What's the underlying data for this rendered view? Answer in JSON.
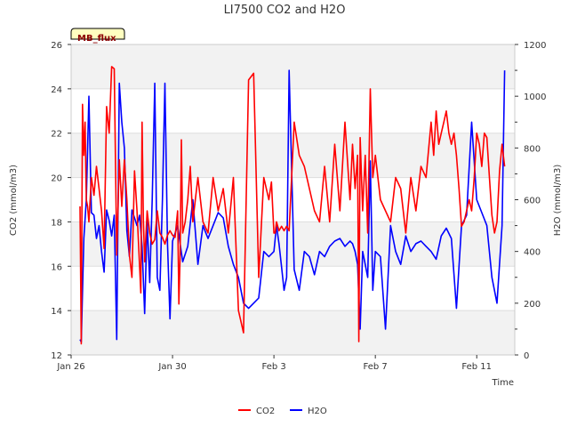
{
  "chart_data": {
    "type": "line",
    "title": "LI7500 CO2 and H2O",
    "badge": "MB_flux",
    "xlabel": "Time",
    "ylabel_left": "CO2 (mmol/m3)",
    "ylabel_right": "H2O (mmol/m3)",
    "x_ticks": [
      "Jan 26",
      "Jan 30",
      "Feb 3",
      "Feb 7",
      "Feb 11"
    ],
    "x_tick_days": [
      0,
      4,
      8,
      12,
      16
    ],
    "xlim_days": [
      0,
      17.5
    ],
    "ylim_left": [
      12,
      26
    ],
    "yticks_left": [
      12,
      14,
      16,
      18,
      20,
      22,
      24,
      26
    ],
    "ylim_right": [
      0,
      1200
    ],
    "yticks_right": [
      0,
      200,
      400,
      600,
      800,
      1000,
      1200
    ],
    "grid_bands": true,
    "legend_position": "bottom-center",
    "series": [
      {
        "name": "CO2",
        "axis": "left",
        "color": "#ff0000",
        "x": [
          0.35,
          0.4,
          0.45,
          0.5,
          0.55,
          0.6,
          0.65,
          0.7,
          0.8,
          0.9,
          1.0,
          1.1,
          1.2,
          1.3,
          1.4,
          1.5,
          1.6,
          1.7,
          1.8,
          1.9,
          2.0,
          2.1,
          2.2,
          2.3,
          2.4,
          2.5,
          2.6,
          2.7,
          2.75,
          2.8,
          2.85,
          2.9,
          3.0,
          3.1,
          3.2,
          3.3,
          3.4,
          3.5,
          3.6,
          3.7,
          3.8,
          3.9,
          4.0,
          4.1,
          4.2,
          4.25,
          4.3,
          4.35,
          4.4,
          4.5,
          4.6,
          4.7,
          4.8,
          4.9,
          5.0,
          5.2,
          5.4,
          5.6,
          5.8,
          6.0,
          6.2,
          6.4,
          6.6,
          6.8,
          7.0,
          7.2,
          7.4,
          7.6,
          7.8,
          7.9,
          8.0,
          8.05,
          8.1,
          8.2,
          8.3,
          8.4,
          8.5,
          8.6,
          8.8,
          9.0,
          9.2,
          9.4,
          9.6,
          9.8,
          10.0,
          10.2,
          10.4,
          10.6,
          10.8,
          11.0,
          11.1,
          11.2,
          11.3,
          11.35,
          11.4,
          11.5,
          11.6,
          11.7,
          11.8,
          11.9,
          12.0,
          12.2,
          12.4,
          12.6,
          12.8,
          13.0,
          13.2,
          13.4,
          13.6,
          13.8,
          14.0,
          14.2,
          14.3,
          14.4,
          14.5,
          14.6,
          14.7,
          14.8,
          14.9,
          15.0,
          15.1,
          15.2,
          15.3,
          15.4,
          15.5,
          15.6,
          15.7,
          15.8,
          15.9,
          16.0,
          16.1,
          16.2,
          16.3,
          16.4,
          16.5,
          16.6,
          16.7,
          16.8,
          16.9,
          17.0,
          17.1
        ],
        "values": [
          18.7,
          12.5,
          23.3,
          21.0,
          22.5,
          19.0,
          18.7,
          18.0,
          20.0,
          19.2,
          20.5,
          19.5,
          18.5,
          16.8,
          23.2,
          22.0,
          25.0,
          24.9,
          16.5,
          20.8,
          18.7,
          20.8,
          19.0,
          16.5,
          15.5,
          20.3,
          18.5,
          16.0,
          14.8,
          22.5,
          18.0,
          16.2,
          18.5,
          17.5,
          17.0,
          17.2,
          18.5,
          17.5,
          17.3,
          17.0,
          17.4,
          17.6,
          17.4,
          17.3,
          18.5,
          14.3,
          16.5,
          21.7,
          17.5,
          18.0,
          19.0,
          20.5,
          18.0,
          19.0,
          20.0,
          18.0,
          17.5,
          20.0,
          18.5,
          19.5,
          17.5,
          20.0,
          14.0,
          13.0,
          24.4,
          24.7,
          15.5,
          20.0,
          19.0,
          19.8,
          17.5,
          17.5,
          18.0,
          17.6,
          17.8,
          17.6,
          17.8,
          17.6,
          22.5,
          21.0,
          20.5,
          19.5,
          18.5,
          18.0,
          20.5,
          18.0,
          21.5,
          18.5,
          22.5,
          19.0,
          21.5,
          19.5,
          21.0,
          12.6,
          21.8,
          18.5,
          21.0,
          17.5,
          24.0,
          20.0,
          21.0,
          19.0,
          18.5,
          18.0,
          20.0,
          19.5,
          17.5,
          20.0,
          18.5,
          20.5,
          20.0,
          22.5,
          21.0,
          23.0,
          21.5,
          22.0,
          22.5,
          23.0,
          22.0,
          21.5,
          22.0,
          21.0,
          19.5,
          17.8,
          18.0,
          18.5,
          19.0,
          18.5,
          20.0,
          22.0,
          21.5,
          20.5,
          22.0,
          21.8,
          20.0,
          18.3,
          17.5,
          18.0,
          20.3,
          21.5,
          20.5
        ],
        "note": "approximate trace; sampled from dense high-frequency record"
      },
      {
        "name": "H2O",
        "axis": "right",
        "color": "#0000ff",
        "x": [
          0.35,
          0.4,
          0.5,
          0.6,
          0.7,
          0.8,
          0.9,
          1.0,
          1.1,
          1.2,
          1.3,
          1.4,
          1.5,
          1.6,
          1.7,
          1.8,
          1.9,
          2.0,
          2.1,
          2.2,
          2.3,
          2.4,
          2.5,
          2.6,
          2.7,
          2.8,
          2.9,
          3.0,
          3.1,
          3.2,
          3.3,
          3.4,
          3.5,
          3.6,
          3.7,
          3.8,
          3.9,
          4.0,
          4.2,
          4.4,
          4.6,
          4.8,
          5.0,
          5.2,
          5.4,
          5.6,
          5.8,
          6.0,
          6.2,
          6.4,
          6.6,
          6.8,
          7.0,
          7.2,
          7.4,
          7.6,
          7.8,
          8.0,
          8.1,
          8.2,
          8.3,
          8.4,
          8.5,
          8.6,
          8.8,
          9.0,
          9.2,
          9.4,
          9.6,
          9.8,
          10.0,
          10.2,
          10.4,
          10.6,
          10.8,
          11.0,
          11.1,
          11.2,
          11.3,
          11.4,
          11.5,
          11.6,
          11.7,
          11.8,
          11.9,
          12.0,
          12.2,
          12.4,
          12.6,
          12.8,
          13.0,
          13.2,
          13.4,
          13.6,
          13.8,
          14.0,
          14.2,
          14.4,
          14.6,
          14.8,
          15.0,
          15.2,
          15.4,
          15.5,
          15.6,
          15.8,
          16.0,
          16.2,
          16.4,
          16.6,
          16.8,
          17.0,
          17.1
        ],
        "values": [
          60,
          50,
          450,
          600,
          1000,
          550,
          540,
          450,
          500,
          400,
          320,
          560,
          520,
          460,
          540,
          60,
          1050,
          900,
          800,
          480,
          380,
          560,
          530,
          500,
          540,
          420,
          160,
          520,
          280,
          600,
          1050,
          300,
          250,
          600,
          1050,
          430,
          140,
          440,
          500,
          360,
          420,
          600,
          350,
          500,
          450,
          500,
          550,
          530,
          420,
          350,
          300,
          200,
          180,
          200,
          220,
          400,
          380,
          400,
          500,
          430,
          340,
          250,
          300,
          1100,
          330,
          250,
          400,
          380,
          310,
          400,
          380,
          420,
          440,
          450,
          420,
          440,
          430,
          400,
          350,
          100,
          400,
          350,
          300,
          750,
          250,
          400,
          380,
          100,
          500,
          400,
          350,
          460,
          400,
          430,
          440,
          420,
          400,
          370,
          460,
          490,
          450,
          180,
          500,
          520,
          540,
          900,
          600,
          550,
          500,
          300,
          200,
          500,
          1100
        ],
        "note": "approximate trace; sampled from dense high-frequency record"
      }
    ]
  }
}
